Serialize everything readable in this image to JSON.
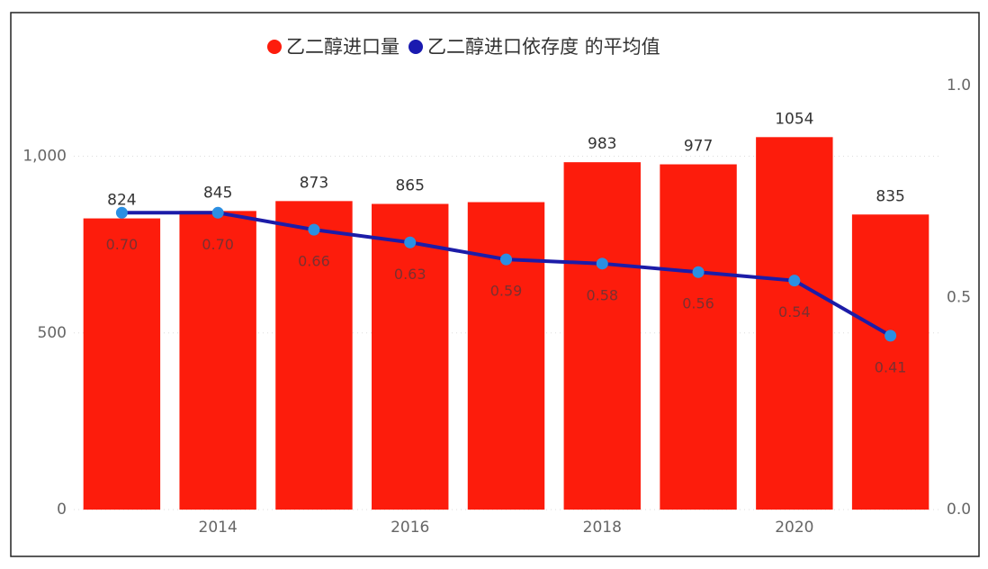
{
  "chart_data": {
    "type": "bar_line",
    "categories": [
      null,
      "2014",
      null,
      "2016",
      null,
      "2018",
      null,
      "2020",
      null
    ],
    "series": [
      {
        "name": "乙二醇进口量",
        "type": "bar",
        "color": "#fd1c0c",
        "axis": "y",
        "values": [
          824,
          845,
          873,
          865,
          870,
          983,
          977,
          1054,
          835
        ],
        "value_labels": [
          "824",
          "845",
          "873",
          "865",
          null,
          "983",
          "977",
          "1054",
          "835"
        ]
      },
      {
        "name": "乙二醇进口依存度 的平均值",
        "type": "line",
        "color": "#1c1ca8",
        "marker_color": "#2b8fe2",
        "axis": "y2",
        "values": [
          0.7,
          0.7,
          0.66,
          0.63,
          0.59,
          0.58,
          0.56,
          0.54,
          0.41
        ],
        "value_labels": [
          "0.70",
          "0.70",
          "0.66",
          "0.63",
          "0.59",
          "0.58",
          "0.56",
          "0.54",
          "0.41"
        ]
      }
    ],
    "ylim": [
      0,
      1200
    ],
    "yticks": [
      0,
      500,
      {
        "value": 1000,
        "label": "1,000"
      }
    ],
    "y2lim": [
      0,
      1.0
    ],
    "y2ticks": [
      {
        "value": 0,
        "label": "0.0"
      },
      0.5,
      {
        "value": 1,
        "label": "1.0"
      }
    ],
    "grid": true,
    "legend": "top"
  }
}
